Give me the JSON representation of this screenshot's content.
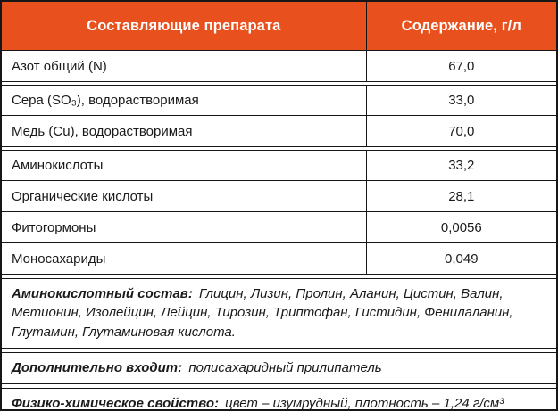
{
  "header": {
    "col1": "Составляющие препарата",
    "col2": "Содержание, г/л"
  },
  "rows": [
    {
      "name": "Азот общий (N)",
      "value": "67,0"
    },
    {
      "name": "Сера  (SO₃), водорастворимая",
      "value": "33,0"
    },
    {
      "name": "Медь (Cu), водорастворимая",
      "value": "70,0"
    },
    {
      "name": "Аминокислоты",
      "value": "33,2"
    },
    {
      "name": "Органические кислоты",
      "value": "28,1"
    },
    {
      "name": "Фитогормоны",
      "value": "0,0056"
    },
    {
      "name": "Моносахариды",
      "value": "0,049"
    }
  ],
  "notes": [
    {
      "label": "Аминокислотный состав:",
      "text": "Глицин, Лизин, Пролин, Аланин, Цистин, Валин, Метионин, Изолейцин, Лейцин, Тирозин, Триптофан, Гистидин, Фенилаланин, Глутамин, Глутаминовая кислота."
    },
    {
      "label": "Дополнительно входит:",
      "text": "полисахаридный прилипатель"
    },
    {
      "label": "Физико-химическое свойство:",
      "text": "цвет – изумрудный, плотность – 1,24 г/см³"
    }
  ],
  "colors": {
    "header_bg": "#E8501D",
    "header_text": "#FFFFFF",
    "border": "#161616",
    "text": "#1A1A1A"
  },
  "chart_data": {
    "type": "table",
    "title": "Состав препарата",
    "columns": [
      "Составляющие препарата",
      "Содержание, г/л"
    ],
    "rows": [
      [
        "Азот общий (N)",
        "67,0"
      ],
      [
        "Сера (SO₃), водорастворимая",
        "33,0"
      ],
      [
        "Медь (Cu), водорастворимая",
        "70,0"
      ],
      [
        "Аминокислоты",
        "33,2"
      ],
      [
        "Органические кислоты",
        "28,1"
      ],
      [
        "Фитогормоны",
        "0,0056"
      ],
      [
        "Моносахариды",
        "0,049"
      ]
    ],
    "footnotes": [
      "Аминокислотный состав: Глицин, Лизин, Пролин, Аланин, Цистин, Валин, Метионин, Изолейцин, Лейцин, Тирозин, Триптофан, Гистидин, Фенилаланин, Глутамин, Глутаминовая кислота.",
      "Дополнительно входит: полисахаридный прилипатель",
      "Физико-химическое свойство: цвет – изумрудный, плотность – 1,24 г/см³"
    ]
  }
}
